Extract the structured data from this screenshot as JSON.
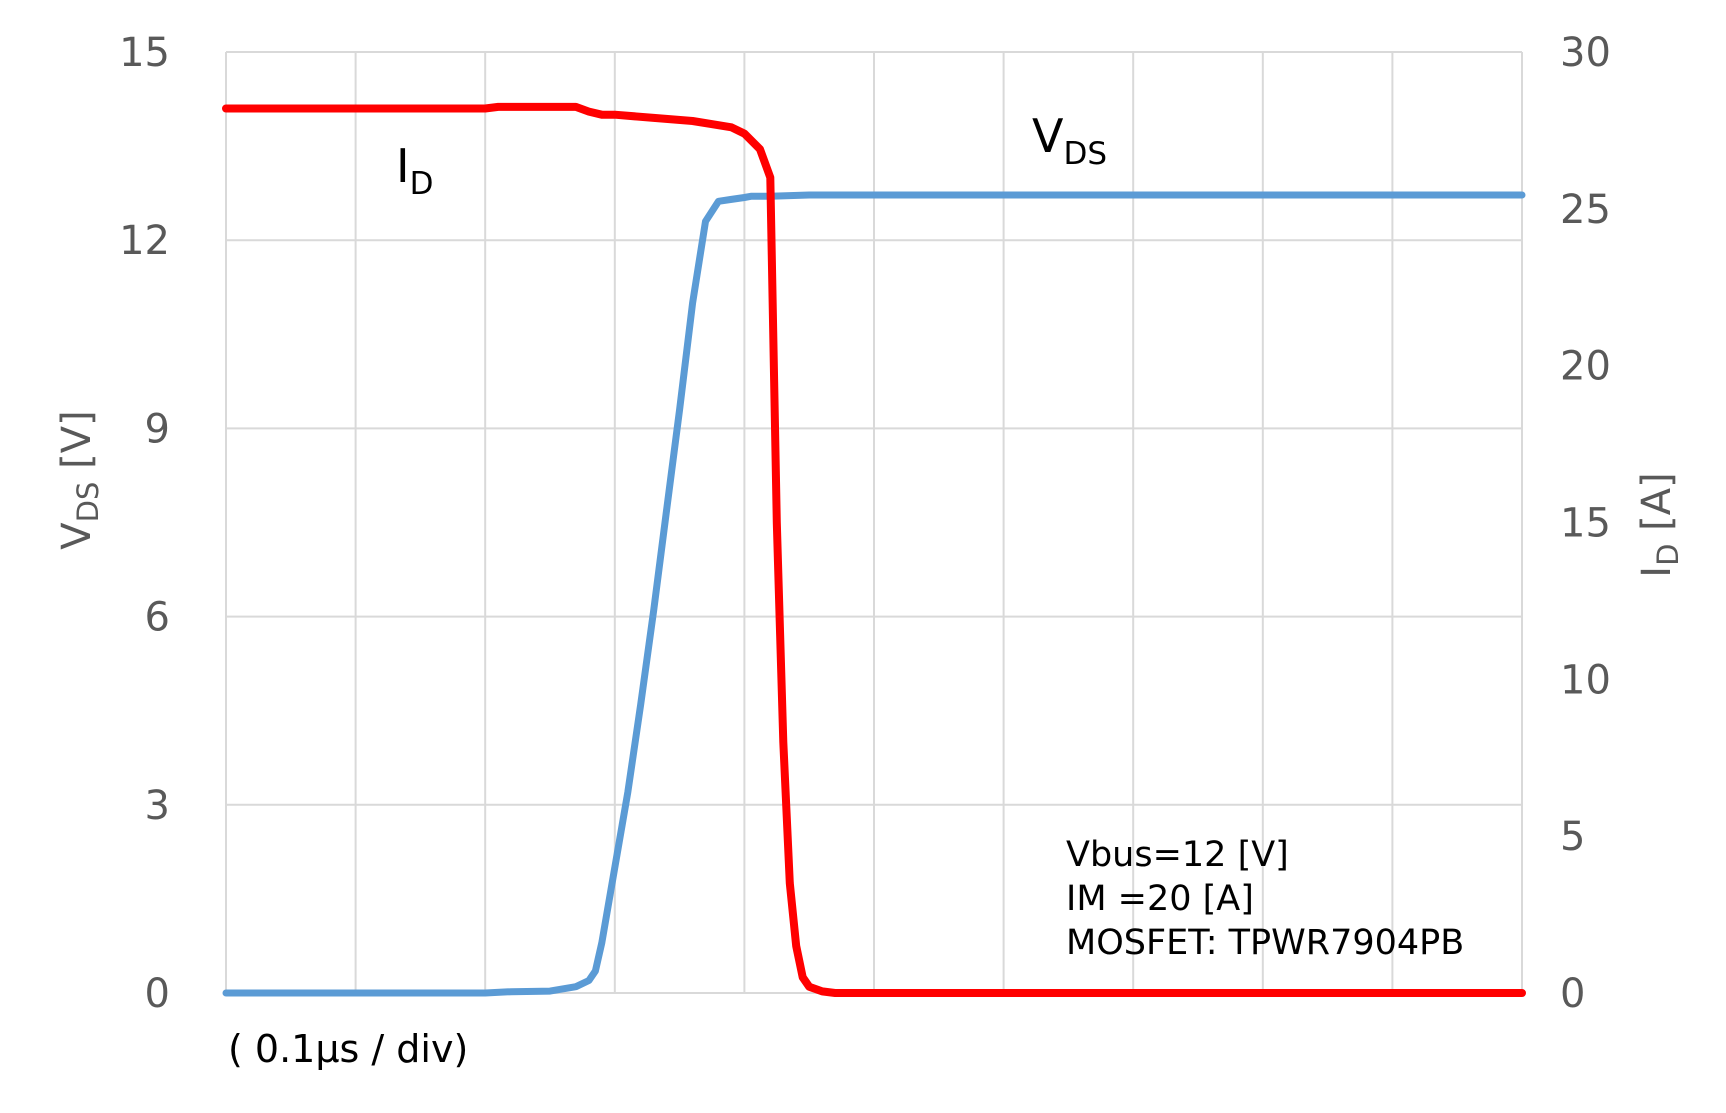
{
  "chart_data": {
    "type": "line",
    "time_division": "( 0.1µs / div)",
    "x_divisions": 10,
    "grid": true,
    "y_left": {
      "label_main": "V",
      "label_sub": "DS",
      "label_unit": " [V]",
      "min": 0,
      "max": 15,
      "ticks": [
        "0",
        "3",
        "6",
        "9",
        "12",
        "15"
      ],
      "tick_values": [
        0,
        3,
        6,
        9,
        12,
        15
      ]
    },
    "y_right": {
      "label_main": "I",
      "label_sub": "D",
      "label_unit": " [A]",
      "min": 0,
      "max": 30,
      "ticks": [
        "0",
        "5",
        "10",
        "15",
        "20",
        "25",
        "30"
      ],
      "tick_values": [
        0,
        5,
        10,
        15,
        20,
        25,
        30
      ]
    },
    "series": [
      {
        "name": "VDS",
        "label_main": "V",
        "label_sub": "DS",
        "axis": "left",
        "color": "#5b9bd5",
        "x": [
          0,
          2.0,
          2.2,
          2.5,
          2.7,
          2.8,
          2.85,
          2.9,
          3.0,
          3.1,
          3.2,
          3.3,
          3.4,
          3.5,
          3.6,
          3.7,
          3.8,
          3.9,
          4.0,
          4.05,
          4.1,
          4.2,
          4.5,
          5.0,
          6.0,
          7.0,
          8.0,
          9.0,
          10.0
        ],
        "y": [
          0,
          0,
          0.02,
          0.03,
          0.1,
          0.2,
          0.35,
          0.8,
          2.0,
          3.2,
          4.6,
          6.1,
          7.7,
          9.3,
          11.0,
          12.3,
          12.62,
          12.65,
          12.68,
          12.7,
          12.7,
          12.7,
          12.72,
          12.72,
          12.72,
          12.72,
          12.72,
          12.72,
          12.72
        ]
      },
      {
        "name": "ID",
        "label_main": "I",
        "label_sub": "D",
        "axis": "right",
        "color": "#ff0000",
        "x": [
          0,
          2.0,
          2.1,
          2.7,
          2.8,
          2.9,
          3.0,
          3.3,
          3.6,
          3.9,
          4.0,
          4.12,
          4.2,
          4.25,
          4.3,
          4.35,
          4.4,
          4.45,
          4.5,
          4.6,
          4.7,
          5.0,
          6.0,
          7.0,
          8.0,
          9.0,
          10.0
        ],
        "y": [
          28.2,
          28.2,
          28.25,
          28.25,
          28.1,
          28.0,
          28.0,
          27.9,
          27.8,
          27.6,
          27.4,
          26.9,
          26.0,
          15.0,
          8.0,
          3.5,
          1.5,
          0.5,
          0.2,
          0.05,
          0,
          0,
          0,
          0,
          0,
          0,
          0
        ]
      }
    ],
    "annotations": [
      "Vbus=12 [V]",
      "IM =20 [A]",
      "MOSFET: TPWR7904PB"
    ]
  }
}
